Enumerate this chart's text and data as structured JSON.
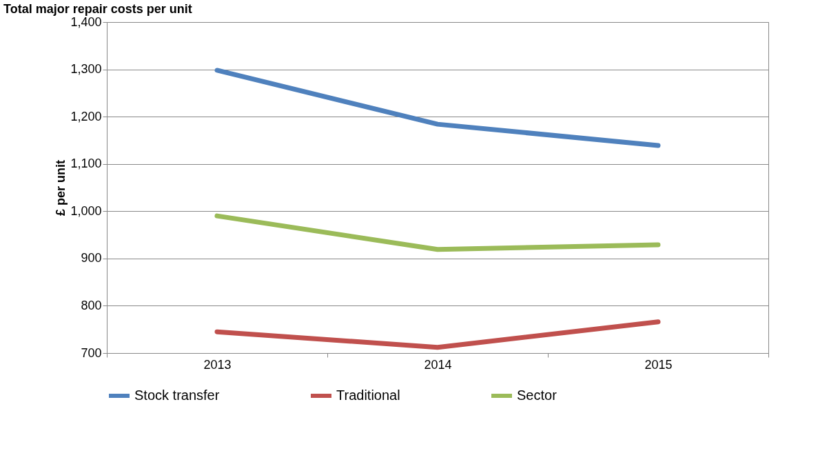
{
  "chart_data": {
    "type": "line",
    "title": "Total major repair costs per unit",
    "ylabel": "£ per unit",
    "categories": [
      "2013",
      "2014",
      "2015"
    ],
    "series": [
      {
        "name": "Stock transfer",
        "color": "#4f81bd",
        "values": [
          1298,
          1184,
          1139
        ]
      },
      {
        "name": "Traditional",
        "color": "#c0504d",
        "values": [
          745,
          712,
          766
        ]
      },
      {
        "name": "Sector",
        "color": "#9bbb59",
        "values": [
          990,
          919,
          929
        ]
      }
    ],
    "ylim": [
      700,
      1400
    ],
    "yticks": [
      700,
      800,
      900,
      {
        "value": 1000,
        "label": "1,000"
      },
      {
        "value": 1100,
        "label": "1,100"
      },
      {
        "value": 1200,
        "label": "1,200"
      },
      {
        "value": 1300,
        "label": "1,300"
      },
      {
        "value": 1400,
        "label": "1,400"
      }
    ],
    "grid": "y",
    "legend": "bottom",
    "marker": "none",
    "line_style": "solid"
  }
}
